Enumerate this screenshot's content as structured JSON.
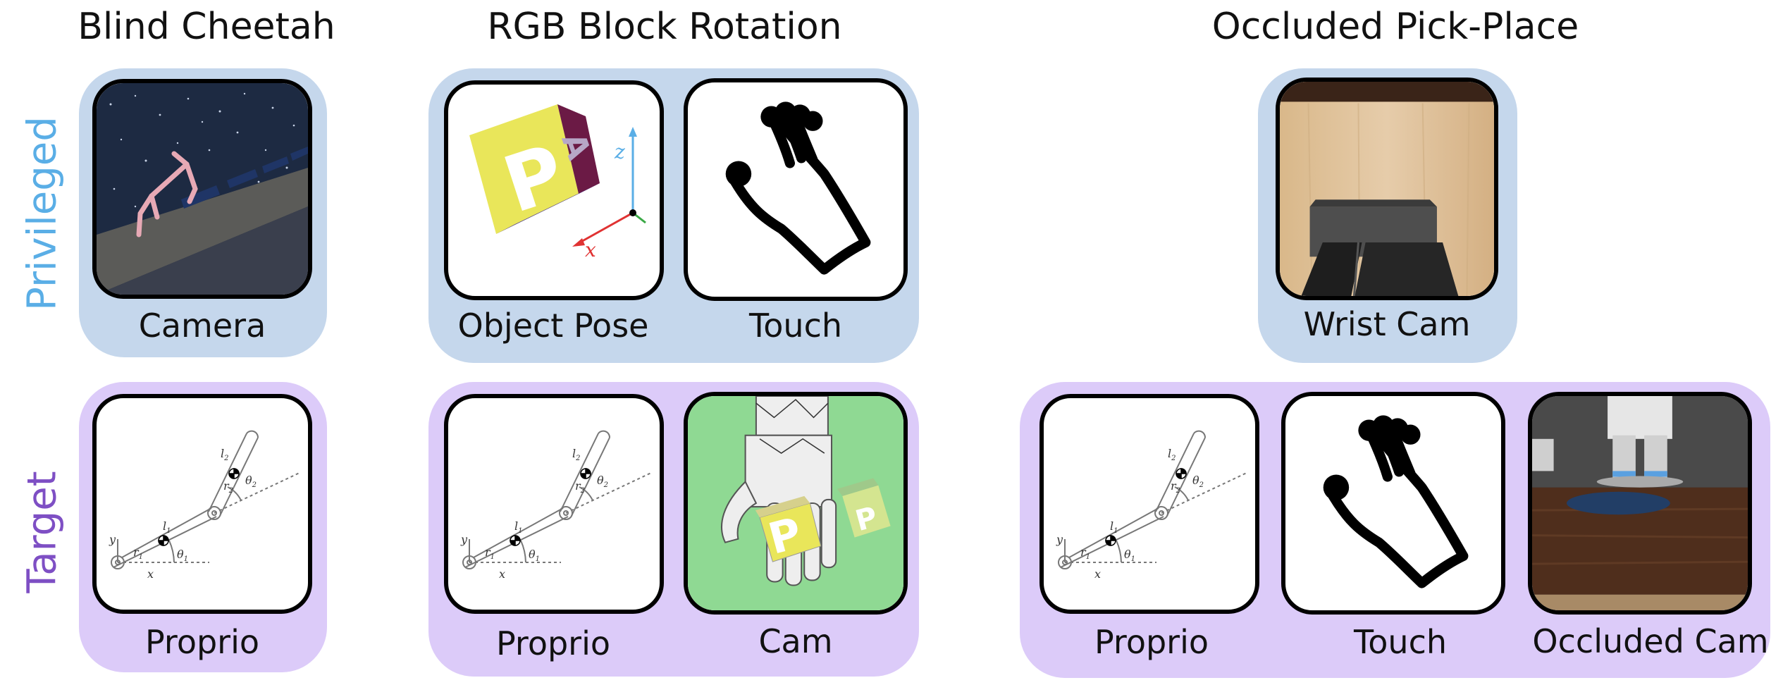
{
  "titles": {
    "blind_cheetah": "Blind Cheetah",
    "rgb_block_rotation": "RGB Block Rotation",
    "occluded_pick_place": "Occluded Pick-Place"
  },
  "row_labels": {
    "privileged": "Privileged",
    "target": "Target"
  },
  "tiles": {
    "cheetah_camera": "Camera",
    "cheetah_proprio": "Proprio",
    "rgb_object_pose": "Object Pose",
    "rgb_touch": "Touch",
    "rgb_proprio": "Proprio",
    "rgb_cam": "Cam",
    "pp_wrist_cam": "Wrist Cam",
    "pp_proprio": "Proprio",
    "pp_touch": "Touch",
    "pp_occluded_cam": "Occluded Cam"
  },
  "arm_symbols": {
    "l1": "l",
    "l2": "l",
    "r1": "r",
    "r2": "r",
    "theta1": "θ",
    "theta2": "θ",
    "x": "x",
    "y": "y",
    "sub1": "1",
    "sub2": "2"
  },
  "axis_labels": {
    "x": "x",
    "z": "z"
  },
  "block_letters": {
    "front": "P",
    "top": "A"
  },
  "colors": {
    "privileged_panel": "#c5d7ec",
    "target_panel": "#dccbf9",
    "privileged_text": "#5aaee6",
    "target_text": "#7e4fc4",
    "block_yellow": "#e9e65a",
    "green_screen": "#8fd993"
  }
}
